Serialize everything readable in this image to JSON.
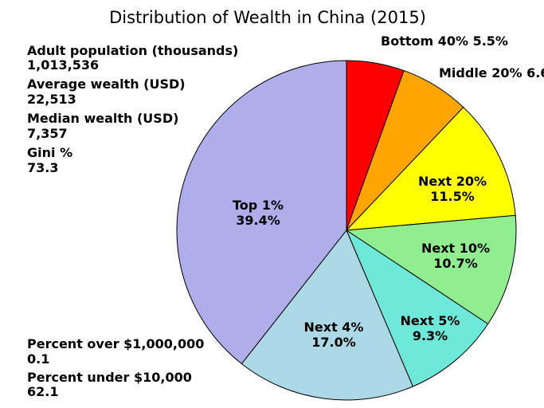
{
  "chart_data": {
    "type": "pie",
    "title": "Distribution of Wealth in China (2015)",
    "slices": [
      {
        "label": "Bottom 40%",
        "value_label": "5.5%",
        "value": 5.5,
        "color": "#ff0000"
      },
      {
        "label": "Middle 20%",
        "value_label": "6.6",
        "value": 6.6,
        "color": "#ffa500"
      },
      {
        "label": "Next 20%",
        "value_label": "11.5%",
        "value": 11.5,
        "color": "#ffff00"
      },
      {
        "label": "Next 10%",
        "value_label": "10.7%",
        "value": 10.7,
        "color": "#90ee90"
      },
      {
        "label": "Next 5%",
        "value_label": "9.3%",
        "value": 9.3,
        "color": "#6ee8d8"
      },
      {
        "label": "Next 4%",
        "value_label": "17.0%",
        "value": 17.0,
        "color": "#add8e6"
      },
      {
        "label": "Top 1%",
        "value_label": "39.4%",
        "value": 39.4,
        "color": "#b0aeea"
      }
    ]
  },
  "stats": [
    {
      "label": "Adult population (thousands)",
      "value": "1,013,536"
    },
    {
      "label": "Average wealth (USD)",
      "value": "22,513"
    },
    {
      "label": "Median wealth (USD)",
      "value": "7,357"
    },
    {
      "label": "Gini %",
      "value": "73.3"
    },
    {
      "label": "Percent over $1,000,000",
      "value": "0.1"
    },
    {
      "label": "Percent under $10,000",
      "value": "62.1"
    }
  ]
}
